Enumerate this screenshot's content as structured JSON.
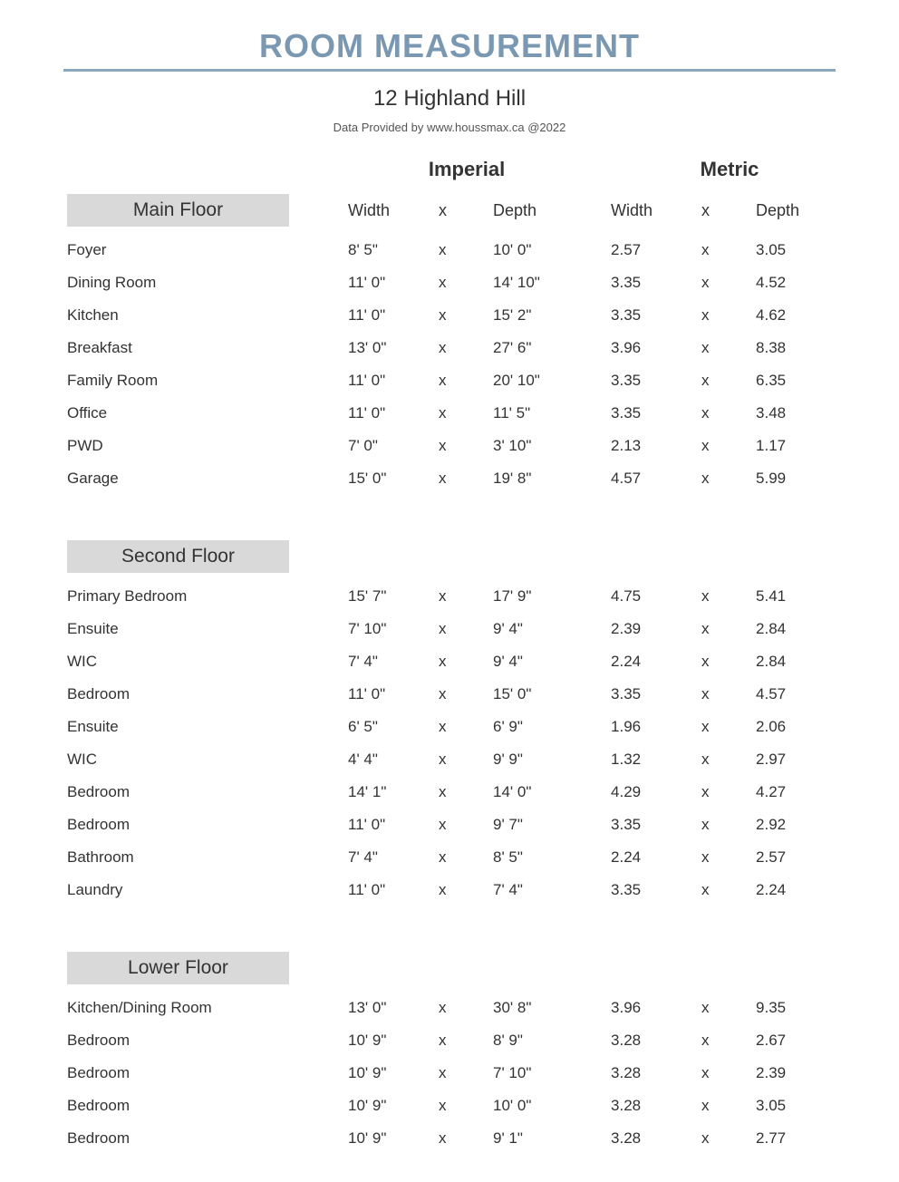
{
  "title": "ROOM MEASUREMENT",
  "address": "12 Highland Hill",
  "provider": "Data Provided by www.houssmax.ca @2022",
  "unit_headers": {
    "imperial": "Imperial",
    "metric": "Metric"
  },
  "col_labels": {
    "width": "Width",
    "x": "x",
    "depth": "Depth"
  },
  "style": {
    "title_color": "#7a98b2",
    "rule_color": "#8aa8bd",
    "floor_head_bg": "#d9d9d9",
    "text_color": "#333333",
    "background": "#ffffff"
  },
  "sections": [
    {
      "name": "Main Floor",
      "rows": [
        {
          "room": "Foyer",
          "iw": "8' 5\"",
          "id": "10' 0\"",
          "mw": "2.57",
          "md": "3.05"
        },
        {
          "room": "Dining Room",
          "iw": "11' 0\"",
          "id": "14' 10\"",
          "mw": "3.35",
          "md": "4.52"
        },
        {
          "room": "Kitchen",
          "iw": "11' 0\"",
          "id": "15' 2\"",
          "mw": "3.35",
          "md": "4.62"
        },
        {
          "room": "Breakfast",
          "iw": "13' 0\"",
          "id": "27' 6\"",
          "mw": "3.96",
          "md": "8.38"
        },
        {
          "room": "Family Room",
          "iw": "11' 0\"",
          "id": "20' 10\"",
          "mw": "3.35",
          "md": "6.35"
        },
        {
          "room": "Office",
          "iw": "11' 0\"",
          "id": "11' 5\"",
          "mw": "3.35",
          "md": "3.48"
        },
        {
          "room": "PWD",
          "iw": "7' 0\"",
          "id": "3' 10\"",
          "mw": "2.13",
          "md": "1.17"
        },
        {
          "room": "Garage",
          "iw": "15' 0\"",
          "id": "19' 8\"",
          "mw": "4.57",
          "md": "5.99"
        }
      ]
    },
    {
      "name": "Second Floor",
      "rows": [
        {
          "room": "Primary Bedroom",
          "iw": "15' 7\"",
          "id": "17' 9\"",
          "mw": "4.75",
          "md": "5.41"
        },
        {
          "room": "Ensuite",
          "iw": "7' 10\"",
          "id": "9' 4\"",
          "mw": "2.39",
          "md": "2.84"
        },
        {
          "room": "WIC",
          "iw": "7' 4\"",
          "id": "9' 4\"",
          "mw": "2.24",
          "md": "2.84"
        },
        {
          "room": "Bedroom",
          "iw": "11' 0\"",
          "id": "15' 0\"",
          "mw": "3.35",
          "md": "4.57"
        },
        {
          "room": "Ensuite",
          "iw": "6' 5\"",
          "id": "6' 9\"",
          "mw": "1.96",
          "md": "2.06"
        },
        {
          "room": "WIC",
          "iw": "4' 4\"",
          "id": "9' 9\"",
          "mw": "1.32",
          "md": "2.97"
        },
        {
          "room": "Bedroom",
          "iw": "14' 1\"",
          "id": "14' 0\"",
          "mw": "4.29",
          "md": "4.27"
        },
        {
          "room": "Bedroom",
          "iw": "11' 0\"",
          "id": "9' 7\"",
          "mw": "3.35",
          "md": "2.92"
        },
        {
          "room": "Bathroom",
          "iw": "7' 4\"",
          "id": "8' 5\"",
          "mw": "2.24",
          "md": "2.57"
        },
        {
          "room": "Laundry",
          "iw": "11' 0\"",
          "id": "7' 4\"",
          "mw": "3.35",
          "md": "2.24"
        }
      ]
    },
    {
      "name": "Lower Floor",
      "rows": [
        {
          "room": "Kitchen/Dining Room",
          "iw": "13' 0\"",
          "id": "30' 8\"",
          "mw": "3.96",
          "md": "9.35"
        },
        {
          "room": "Bedroom",
          "iw": "10' 9\"",
          "id": "8' 9\"",
          "mw": "3.28",
          "md": "2.67"
        },
        {
          "room": "Bedroom",
          "iw": "10' 9\"",
          "id": "7' 10\"",
          "mw": "3.28",
          "md": "2.39"
        },
        {
          "room": "Bedroom",
          "iw": "10' 9\"",
          "id": "10' 0\"",
          "mw": "3.28",
          "md": "3.05"
        },
        {
          "room": "Bedroom",
          "iw": "10' 9\"",
          "id": "9' 1\"",
          "mw": "3.28",
          "md": "2.77"
        }
      ]
    }
  ]
}
